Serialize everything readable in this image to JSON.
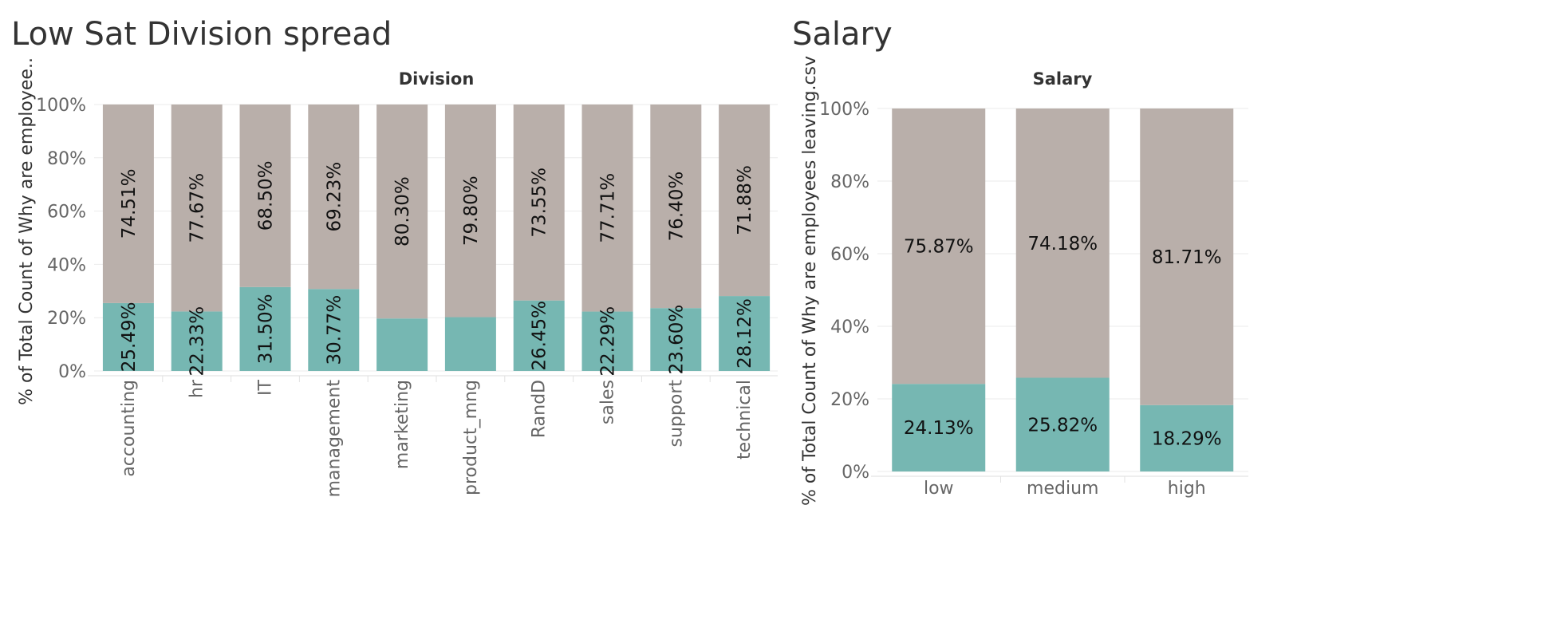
{
  "colors": {
    "stay": "#b9afaa",
    "left": "#76b7b2",
    "grid": "#ebebeb"
  },
  "charts": [
    {
      "title": "Low Sat Division spread",
      "header": "Division",
      "ylabel": "% of Total Count of Why are employee..",
      "yticks": [
        "0%",
        "20%",
        "40%",
        "60%",
        "80%",
        "100%"
      ]
    },
    {
      "title": "Salary",
      "header": "Salary",
      "ylabel": "% of Total Count of Why are employees leaving.csv",
      "yticks": [
        "0%",
        "20%",
        "40%",
        "60%",
        "80%",
        "100%"
      ]
    }
  ],
  "chart_data": [
    {
      "type": "bar",
      "stacked": true,
      "title": "Low Sat Division spread",
      "xlabel": "Division",
      "ylabel": "% of Total Count of Why are employee..",
      "ylim": [
        0,
        100
      ],
      "grid": true,
      "categories": [
        "accounting",
        "hr",
        "IT",
        "management",
        "marketing",
        "product_mng",
        "RandD",
        "sales",
        "support",
        "technical"
      ],
      "series": [
        {
          "values": [
            25.49,
            22.33,
            31.5,
            30.77,
            19.7,
            20.2,
            26.45,
            22.29,
            23.6,
            28.12
          ],
          "labels": [
            "25.49%",
            "22.33%",
            "31.50%",
            "30.77%",
            "",
            "",
            "26.45%",
            "22.29%",
            "23.60%",
            "28.12%"
          ]
        },
        {
          "values": [
            74.51,
            77.67,
            68.5,
            69.23,
            80.3,
            79.8,
            73.55,
            77.71,
            76.4,
            71.88
          ],
          "labels": [
            "74.51%",
            "77.67%",
            "68.50%",
            "69.23%",
            "80.30%",
            "79.80%",
            "73.55%",
            "77.71%",
            "76.40%",
            "71.88%"
          ]
        }
      ]
    },
    {
      "type": "bar",
      "stacked": true,
      "title": "Salary",
      "xlabel": "Salary",
      "ylabel": "% of Total Count of Why are employees leaving.csv",
      "ylim": [
        0,
        100
      ],
      "grid": true,
      "categories": [
        "low",
        "medium",
        "high"
      ],
      "series": [
        {
          "values": [
            24.13,
            25.82,
            18.29
          ],
          "labels": [
            "24.13%",
            "25.82%",
            "18.29%"
          ]
        },
        {
          "values": [
            75.87,
            74.18,
            81.71
          ],
          "labels": [
            "75.87%",
            "74.18%",
            "81.71%"
          ]
        }
      ]
    }
  ]
}
